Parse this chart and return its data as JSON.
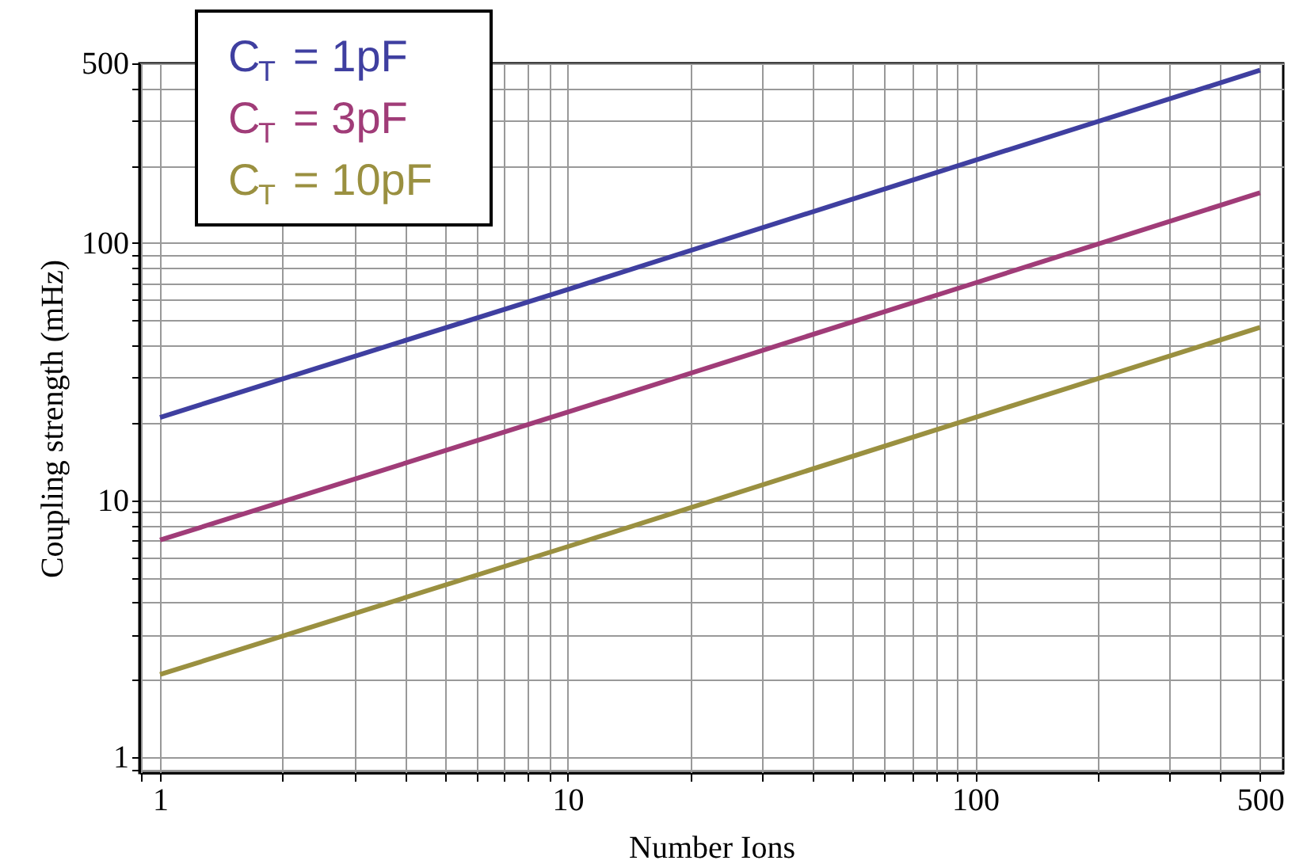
{
  "chart_data": {
    "type": "line",
    "xlabel": "Number Ions",
    "ylabel": "Coupling strength (mHz)",
    "log": "xy",
    "xlim": [
      0.89,
      570
    ],
    "ylim": [
      0.87,
      500
    ],
    "xticks": [
      1,
      10,
      100,
      500
    ],
    "yticks": [
      1,
      10,
      100,
      500
    ],
    "grid": true,
    "legend": "top left",
    "marker": "none",
    "line_style": "solid",
    "x": [
      1,
      10,
      100,
      500
    ],
    "series": [
      {
        "name": "C$_{T}$ = 1pF",
        "color": "#3f3fa0",
        "values": [
          21,
          66,
          210,
          470
        ]
      },
      {
        "name": "C$_{T}$ = 3pF",
        "color": "#a03c78",
        "values": [
          7,
          22,
          70,
          157
        ]
      },
      {
        "name": "C$_{T}$ = 10pF",
        "color": "#9a9040",
        "values": [
          2.1,
          6.6,
          21,
          47
        ]
      }
    ]
  }
}
